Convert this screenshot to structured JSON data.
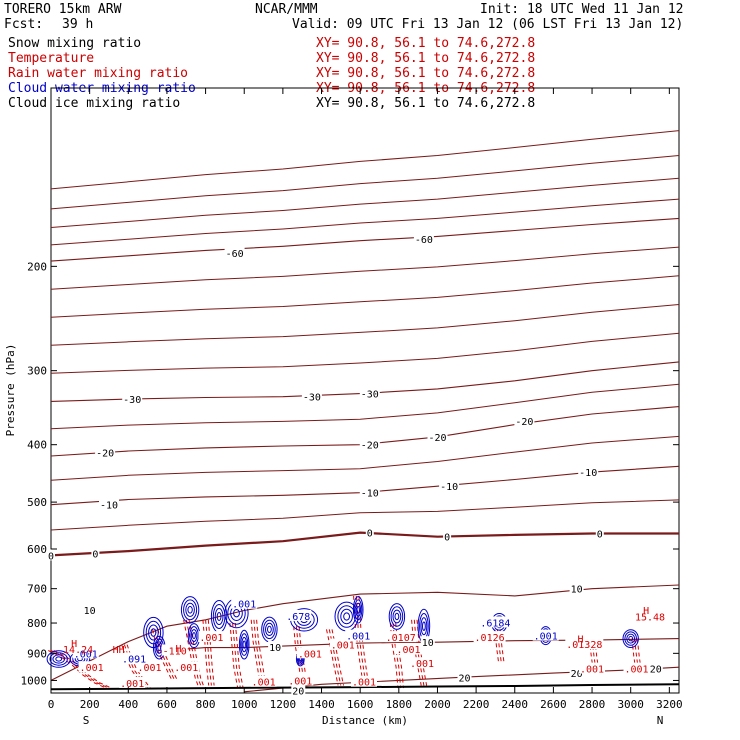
{
  "header": {
    "model": "TORERO  15km ARW",
    "center": "NCAR/MMM",
    "init": "Init: 18 UTC Wed 11 Jan 12",
    "fcst_label": "Fcst:",
    "fcst_value": "39 h",
    "valid": "Valid: 09 UTC Fri 13 Jan 12 (06 LST Fri 13 Jan 12)"
  },
  "fields": [
    {
      "name": "Snow mixing ratio",
      "xy": "XY=  90.8, 56.1 to  74.6,272.8",
      "color": "#000000",
      "xy_color": "#cc0000"
    },
    {
      "name": "Temperature",
      "xy": "XY=  90.8, 56.1 to  74.6,272.8",
      "color": "#cc0000",
      "xy_color": "#cc0000"
    },
    {
      "name": "Rain water mixing ratio",
      "xy": "XY=  90.8, 56.1 to  74.6,272.8",
      "color": "#cc0000",
      "xy_color": "#cc0000"
    },
    {
      "name": "Cloud water mixing ratio",
      "xy": "XY=  90.8, 56.1 to  74.6,272.8",
      "color": "#0000cc",
      "xy_color": "#cc0000"
    },
    {
      "name": "Cloud ice mixing ratio",
      "xy": "XY=  90.8, 56.1 to  74.6,272.8",
      "color": "#000000",
      "xy_color": "#000000"
    }
  ],
  "colors": {
    "temperature": "#7a1a1a",
    "rain": "#dd0000",
    "cloud_water": "#0000cc",
    "terrain": "#000000",
    "text": "#000000"
  },
  "chart_data": {
    "type": "line",
    "xlabel": "Distance (km)",
    "ylabel": "Pressure (hPa)",
    "xlim": [
      0,
      3250
    ],
    "ylim": [
      1050,
      100
    ],
    "yscale": "log",
    "x_ticks": [
      0,
      200,
      400,
      600,
      800,
      1000,
      1200,
      1400,
      1600,
      1800,
      2000,
      2200,
      2400,
      2600,
      2800,
      3000,
      3200
    ],
    "y_ticks": [
      200,
      300,
      400,
      500,
      600,
      700,
      800,
      900,
      1000
    ],
    "x_end_labels": {
      "left": "S",
      "right": "N"
    },
    "isotherms": [
      {
        "level": -60,
        "x": [
          0,
          400,
          800,
          1200,
          1600,
          2000,
          2400,
          2800,
          3250
        ],
        "p": [
          196,
          192,
          188,
          185,
          181,
          178,
          174,
          170,
          166
        ]
      },
      {
        "level": -30,
        "x": [
          0,
          400,
          800,
          1200,
          1600,
          2000,
          2400,
          2800,
          3250
        ],
        "p": [
          338,
          335,
          333,
          332,
          328,
          322,
          312,
          300,
          290
        ]
      },
      {
        "level": -20,
        "x": [
          0,
          400,
          800,
          1200,
          1600,
          2000,
          2400,
          2800,
          3250
        ],
        "p": [
          418,
          410,
          405,
          402,
          400,
          388,
          370,
          355,
          345
        ]
      },
      {
        "level": -10,
        "x": [
          0,
          400,
          800,
          1200,
          1600,
          2000,
          2400,
          2800,
          3250
        ],
        "p": [
          505,
          495,
          490,
          487,
          482,
          470,
          458,
          445,
          435
        ]
      },
      {
        "level": 0,
        "x": [
          0,
          400,
          800,
          1200,
          1600,
          2000,
          2400,
          2800,
          3250
        ],
        "p": [
          615,
          605,
          592,
          582,
          563,
          572,
          568,
          565,
          565
        ]
      },
      {
        "level": 10,
        "x": [
          0,
          400,
          600,
          800,
          1000,
          1200,
          1600,
          2000,
          2400,
          2800,
          3250
        ],
        "p": [
          1000,
          860,
          810,
          790,
          762,
          742,
          715,
          710,
          720,
          700,
          690
        ]
      },
      {
        "level": 10,
        "x": [
          600,
          800,
          1000,
          1200,
          1400,
          1600,
          1800,
          2000,
          2400,
          2800,
          3250
        ],
        "p": [
          890,
          880,
          880,
          875,
          870,
          865,
          863,
          862,
          857,
          855,
          850
        ]
      },
      {
        "level": 20,
        "x": [
          1000,
          1400,
          1800,
          2200,
          2600,
          3000,
          3250
        ],
        "p": [
          1045,
          1015,
          1000,
          985,
          972,
          960,
          950
        ]
      }
    ],
    "contour_labels": [
      {
        "text": "-60",
        "x": 950,
        "p": 190
      },
      {
        "text": "-60",
        "x": 1930,
        "p": 180
      },
      {
        "text": "-30",
        "x": 420,
        "p": 335
      },
      {
        "text": "-30",
        "x": 1350,
        "p": 332
      },
      {
        "text": "-30",
        "x": 1650,
        "p": 328
      },
      {
        "text": "-20",
        "x": 280,
        "p": 412
      },
      {
        "text": "-20",
        "x": 1650,
        "p": 400
      },
      {
        "text": "-20",
        "x": 2000,
        "p": 388
      },
      {
        "text": "-20",
        "x": 2450,
        "p": 365
      },
      {
        "text": "-10",
        "x": 300,
        "p": 505
      },
      {
        "text": "-10",
        "x": 1650,
        "p": 482
      },
      {
        "text": "-10",
        "x": 2060,
        "p": 470
      },
      {
        "text": "-10",
        "x": 2780,
        "p": 445
      },
      {
        "text": "0",
        "x": 0,
        "p": 615
      },
      {
        "text": "0",
        "x": 230,
        "p": 610
      },
      {
        "text": "0",
        "x": 1650,
        "p": 563
      },
      {
        "text": "0",
        "x": 2050,
        "p": 572
      },
      {
        "text": "0",
        "x": 2840,
        "p": 565
      },
      {
        "text": "10",
        "x": 200,
        "p": 760
      },
      {
        "text": "10",
        "x": 2720,
        "p": 700
      },
      {
        "text": "10",
        "x": 1160,
        "p": 878
      },
      {
        "text": "10",
        "x": 1950,
        "p": 862
      },
      {
        "text": "20",
        "x": 1280,
        "p": 1040
      },
      {
        "text": "20",
        "x": 2140,
        "p": 988
      },
      {
        "text": "20",
        "x": 2720,
        "p": 972
      },
      {
        "text": "20",
        "x": 3130,
        "p": 955
      }
    ],
    "rain_labels": [
      {
        "text": ".001",
        "x": 210,
        "p": 950
      },
      {
        "text": ".001",
        "x": 420,
        "p": 1010
      },
      {
        "text": ".001",
        "x": 510,
        "p": 950
      },
      {
        "text": ".001",
        "x": 700,
        "p": 950
      },
      {
        "text": ".001",
        "x": 830,
        "p": 845
      },
      {
        "text": ".001",
        "x": 1100,
        "p": 1005
      },
      {
        "text": ".001",
        "x": 1290,
        "p": 1000
      },
      {
        "text": ".001",
        "x": 1340,
        "p": 900
      },
      {
        "text": ".001",
        "x": 1510,
        "p": 870
      },
      {
        "text": ".001",
        "x": 1620,
        "p": 1005
      },
      {
        "text": ".001",
        "x": 1850,
        "p": 885
      },
      {
        "text": ".001",
        "x": 1920,
        "p": 935
      },
      {
        "text": ".001",
        "x": 2800,
        "p": 955
      },
      {
        "text": ".001",
        "x": 3030,
        "p": 955
      },
      {
        "text": "-110",
        "x": 640,
        "p": 890
      },
      {
        "text": ".0126",
        "x": 2270,
        "p": 845
      },
      {
        "text": ".01328",
        "x": 2760,
        "p": 868
      },
      {
        "text": ".0107",
        "x": 1810,
        "p": 845
      }
    ],
    "cloud_labels": [
      {
        "text": ".001",
        "x": 180,
        "p": 900
      },
      {
        "text": ".001",
        "x": 1000,
        "p": 742
      },
      {
        "text": ".001",
        "x": 1590,
        "p": 840
      },
      {
        "text": ".001",
        "x": 2560,
        "p": 840
      },
      {
        "text": ".678",
        "x": 1280,
        "p": 778
      },
      {
        "text": ".6184",
        "x": 2300,
        "p": 798
      },
      {
        "text": ".091",
        "x": 430,
        "p": 918
      }
    ],
    "extrema": [
      {
        "text": "H",
        "x": 120,
        "p": 865
      },
      {
        "text": "14.24",
        "x": 140,
        "p": 885
      },
      {
        "text": "H",
        "x": 3080,
        "p": 760
      },
      {
        "text": "15.48",
        "x": 3100,
        "p": 780
      },
      {
        "text": "HH",
        "x": 350,
        "p": 885
      },
      {
        "text": "H",
        "x": 660,
        "p": 882
      },
      {
        "text": "H",
        "x": 2740,
        "p": 850
      }
    ],
    "rain_cells": [
      {
        "x": [
          0,
          60,
          120,
          180,
          240,
          300
        ],
        "p": [
          890,
          910,
          940,
          980,
          1010,
          1030
        ]
      },
      {
        "x": [
          380,
          400,
          430,
          470,
          500
        ],
        "p": [
          870,
          910,
          960,
          1000,
          1030
        ]
      },
      {
        "x": [
          540,
          560,
          600,
          640
        ],
        "p": [
          820,
          880,
          940,
          1000
        ]
      },
      {
        "x": [
          700,
          720,
          740,
          760,
          780
        ],
        "p": [
          790,
          850,
          920,
          990,
          1030
        ]
      },
      {
        "x": [
          800,
          810,
          820,
          830
        ],
        "p": [
          790,
          860,
          950,
          1020
        ]
      },
      {
        "x": [
          940,
          950,
          960,
          980
        ],
        "p": [
          800,
          870,
          950,
          1030
        ]
      },
      {
        "x": [
          1050,
          1060,
          1080,
          1100
        ],
        "p": [
          790,
          860,
          940,
          1030
        ]
      },
      {
        "x": [
          1270,
          1280,
          1300,
          1310
        ],
        "p": [
          810,
          880,
          960,
          1030
        ]
      },
      {
        "x": [
          1440,
          1460,
          1480,
          1500
        ],
        "p": [
          820,
          880,
          950,
          1020
        ]
      },
      {
        "x": [
          1580,
          1590,
          1610,
          1630
        ],
        "p": [
          720,
          820,
          920,
          1020
        ]
      },
      {
        "x": [
          1770,
          1780,
          1800,
          1810
        ],
        "p": [
          800,
          870,
          950,
          1030
        ]
      },
      {
        "x": [
          1880,
          1890,
          1910,
          1930
        ],
        "p": [
          790,
          860,
          940,
          1020
        ]
      },
      {
        "x": [
          2310,
          2320,
          2330
        ],
        "p": [
          820,
          880,
          930
        ]
      },
      {
        "x": [
          2800,
          2810,
          2820
        ],
        "p": [
          850,
          910,
          960
        ]
      },
      {
        "x": [
          3020,
          3030,
          3040
        ],
        "p": [
          850,
          910,
          960
        ]
      }
    ],
    "cloud_cells": [
      {
        "x": 40,
        "p": 920,
        "rx": 60,
        "rp": 30
      },
      {
        "x": 150,
        "p": 920,
        "rx": 50,
        "rp": 25
      },
      {
        "x": 530,
        "p": 830,
        "rx": 50,
        "rp": 50
      },
      {
        "x": 560,
        "p": 880,
        "rx": 30,
        "rp": 40
      },
      {
        "x": 720,
        "p": 760,
        "rx": 45,
        "rp": 40
      },
      {
        "x": 740,
        "p": 840,
        "rx": 30,
        "rp": 40
      },
      {
        "x": 870,
        "p": 780,
        "rx": 40,
        "rp": 50
      },
      {
        "x": 960,
        "p": 770,
        "rx": 60,
        "rp": 45
      },
      {
        "x": 1000,
        "p": 870,
        "rx": 25,
        "rp": 50
      },
      {
        "x": 1130,
        "p": 820,
        "rx": 40,
        "rp": 40
      },
      {
        "x": 1290,
        "p": 920,
        "rx": 20,
        "rp": 25
      },
      {
        "x": 1310,
        "p": 790,
        "rx": 70,
        "rp": 35
      },
      {
        "x": 1530,
        "p": 780,
        "rx": 60,
        "rp": 45
      },
      {
        "x": 1590,
        "p": 760,
        "rx": 25,
        "rp": 40
      },
      {
        "x": 1790,
        "p": 780,
        "rx": 40,
        "rp": 40
      },
      {
        "x": 1930,
        "p": 810,
        "rx": 30,
        "rp": 55
      },
      {
        "x": 2320,
        "p": 800,
        "rx": 40,
        "rp": 30
      },
      {
        "x": 2560,
        "p": 840,
        "rx": 30,
        "rp": 30
      },
      {
        "x": 3000,
        "p": 850,
        "rx": 40,
        "rp": 30
      }
    ],
    "terrain": {
      "x": [
        0,
        400,
        800,
        1200,
        1600,
        2000,
        2400,
        2800,
        3250
      ],
      "p": [
        1035,
        1033,
        1030,
        1028,
        1026,
        1024,
        1022,
        1018,
        1015
      ]
    }
  }
}
